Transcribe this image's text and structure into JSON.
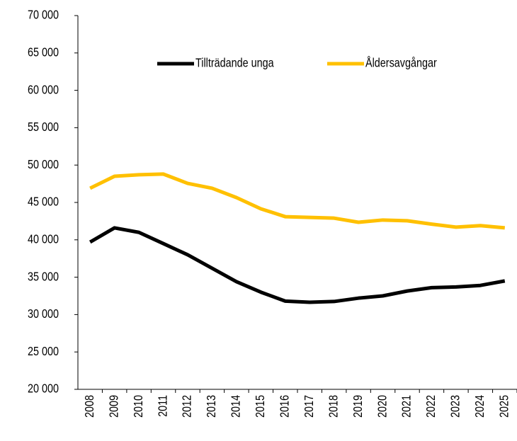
{
  "chart_data": {
    "type": "line",
    "categories": [
      "2008",
      "2009",
      "2010",
      "2011",
      "2012",
      "2013",
      "2014",
      "2015",
      "2016",
      "2017",
      "2018",
      "2019",
      "2020",
      "2021",
      "2022",
      "2023",
      "2024",
      "2025"
    ],
    "series": [
      {
        "name": "Tillträdande unga",
        "color": "#000000",
        "values": [
          39700,
          41600,
          41000,
          39500,
          38000,
          36200,
          34400,
          33000,
          31800,
          31650,
          31750,
          32200,
          32500,
          33150,
          33600,
          33700,
          33900,
          34500
        ]
      },
      {
        "name": "Åldersavgångar",
        "color": "#ffc000",
        "values": [
          46900,
          48500,
          48700,
          48800,
          47550,
          46900,
          45650,
          44150,
          43100,
          43000,
          42900,
          42350,
          42650,
          42550,
          42100,
          41700,
          41900,
          41600
        ]
      }
    ],
    "ylim": [
      20000,
      70000
    ],
    "yticks": [
      {
        "value": 20000,
        "label": "20 000"
      },
      {
        "value": 25000,
        "label": "25 000"
      },
      {
        "value": 30000,
        "label": "30 000"
      },
      {
        "value": 35000,
        "label": "35 000"
      },
      {
        "value": 40000,
        "label": "40 000"
      },
      {
        "value": 45000,
        "label": "45 000"
      },
      {
        "value": 50000,
        "label": "50 000"
      },
      {
        "value": 55000,
        "label": "55 000"
      },
      {
        "value": 60000,
        "label": "60 000"
      },
      {
        "value": 65000,
        "label": "65 000"
      },
      {
        "value": 70000,
        "label": "70 000"
      }
    ],
    "grid": false,
    "legend": "top"
  }
}
